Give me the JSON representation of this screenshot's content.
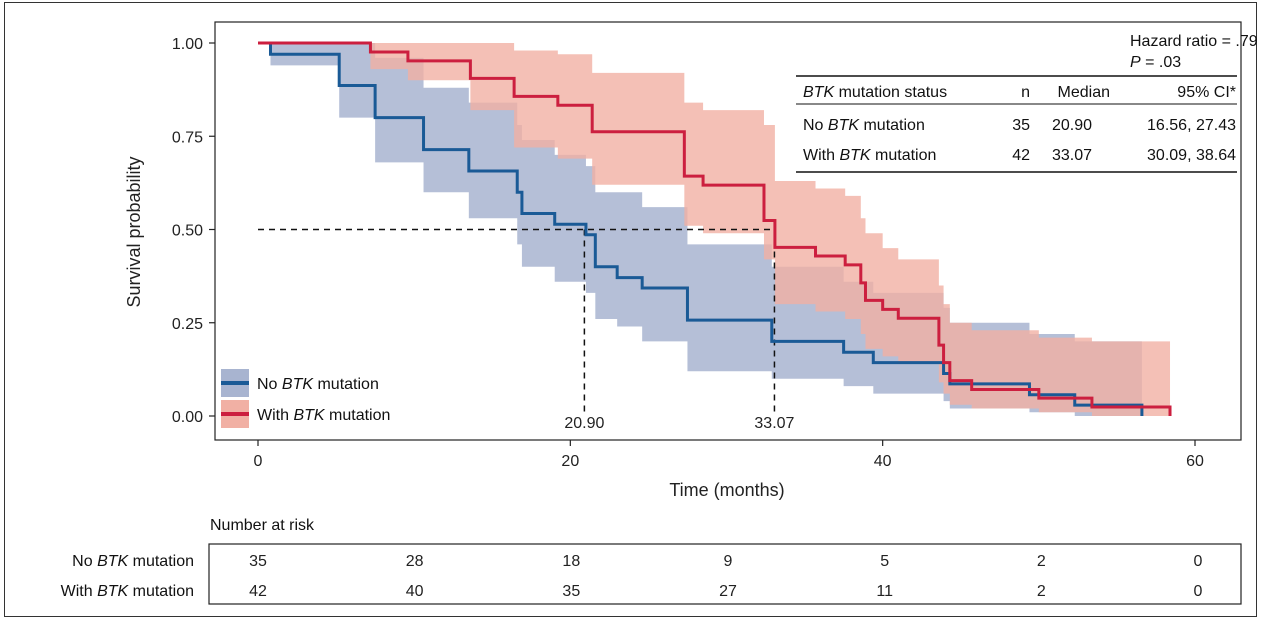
{
  "colors": {
    "no_mut": "#1a5a96",
    "with_mut": "#cc1f3f",
    "no_mut_band": "#a8b4d0",
    "with_mut_band": "#f1b0a4"
  },
  "chart_data": {
    "type": "line",
    "subtype": "kaplan-meier",
    "title": "",
    "xlabel": "Time (months)",
    "ylabel": "Survival probability",
    "xlim": [
      0,
      60
    ],
    "ylim": [
      0,
      1
    ],
    "xticks": [
      0,
      20,
      40,
      60
    ],
    "yticks": [
      0,
      0.25,
      0.5,
      0.75,
      1.0
    ],
    "ytick_labels": [
      "0.00",
      "0.25",
      "0.50",
      "0.75",
      "1.00"
    ],
    "grid": false,
    "legend_position": "bottom-left",
    "series": [
      {
        "key": "no_mut",
        "name_prefix": "No ",
        "name_gene": "BTK",
        "name_suffix": " mutation",
        "steps": [
          [
            0,
            1.0
          ],
          [
            0.8,
            0.97
          ],
          [
            5.2,
            0.886
          ],
          [
            7.5,
            0.8
          ],
          [
            10.6,
            0.714
          ],
          [
            13.5,
            0.657
          ],
          [
            16.6,
            0.6
          ],
          [
            16.9,
            0.543
          ],
          [
            19.0,
            0.514
          ],
          [
            21.0,
            0.486
          ],
          [
            21.6,
            0.4
          ],
          [
            23.0,
            0.371
          ],
          [
            24.6,
            0.343
          ],
          [
            27.5,
            0.257
          ],
          [
            32.9,
            0.2
          ],
          [
            37.5,
            0.171
          ],
          [
            39.4,
            0.143
          ],
          [
            43.9,
            0.114
          ],
          [
            44.3,
            0.086
          ],
          [
            49.4,
            0.057
          ],
          [
            52.3,
            0.029
          ],
          [
            56.6,
            0.0
          ]
        ],
        "upper": [
          [
            0,
            1.0
          ],
          [
            0.8,
            1.0
          ],
          [
            5.2,
            1.0
          ],
          [
            7.5,
            0.96
          ],
          [
            10.6,
            0.88
          ],
          [
            13.5,
            0.84
          ],
          [
            16.6,
            0.78
          ],
          [
            16.9,
            0.74
          ],
          [
            19.0,
            0.7
          ],
          [
            21.0,
            0.67
          ],
          [
            21.6,
            0.6
          ],
          [
            23.0,
            0.6
          ],
          [
            24.6,
            0.56
          ],
          [
            27.5,
            0.46
          ],
          [
            32.9,
            0.4
          ],
          [
            37.5,
            0.36
          ],
          [
            39.4,
            0.33
          ],
          [
            43.9,
            0.29
          ],
          [
            44.3,
            0.25
          ],
          [
            49.4,
            0.22
          ],
          [
            52.3,
            0.2
          ],
          [
            56.6,
            0.2
          ]
        ],
        "lower": [
          [
            0,
            1.0
          ],
          [
            0.8,
            0.94
          ],
          [
            5.2,
            0.8
          ],
          [
            7.5,
            0.68
          ],
          [
            10.6,
            0.6
          ],
          [
            13.5,
            0.53
          ],
          [
            16.6,
            0.46
          ],
          [
            16.9,
            0.4
          ],
          [
            19.0,
            0.36
          ],
          [
            21.0,
            0.33
          ],
          [
            21.6,
            0.26
          ],
          [
            23.0,
            0.24
          ],
          [
            24.6,
            0.2
          ],
          [
            27.5,
            0.12
          ],
          [
            32.9,
            0.1
          ],
          [
            37.5,
            0.08
          ],
          [
            39.4,
            0.06
          ],
          [
            43.9,
            0.04
          ],
          [
            44.3,
            0.02
          ],
          [
            49.4,
            0.01
          ],
          [
            52.3,
            0.0
          ],
          [
            56.6,
            0.0
          ]
        ]
      },
      {
        "key": "with_mut",
        "name_prefix": "With ",
        "name_gene": "BTK",
        "name_suffix": " mutation",
        "steps": [
          [
            0,
            1.0
          ],
          [
            7.2,
            0.976
          ],
          [
            9.6,
            0.952
          ],
          [
            13.6,
            0.905
          ],
          [
            16.4,
            0.857
          ],
          [
            19.2,
            0.833
          ],
          [
            21.4,
            0.762
          ],
          [
            27.3,
            0.643
          ],
          [
            28.5,
            0.619
          ],
          [
            32.4,
            0.524
          ],
          [
            33.1,
            0.452
          ],
          [
            35.7,
            0.429
          ],
          [
            37.6,
            0.405
          ],
          [
            38.6,
            0.357
          ],
          [
            38.9,
            0.31
          ],
          [
            40.0,
            0.286
          ],
          [
            41.0,
            0.262
          ],
          [
            43.6,
            0.19
          ],
          [
            43.9,
            0.143
          ],
          [
            44.3,
            0.095
          ],
          [
            45.7,
            0.071
          ],
          [
            50.0,
            0.048
          ],
          [
            53.4,
            0.024
          ],
          [
            58.4,
            0.012
          ]
        ],
        "upper": [
          [
            0,
            1.0
          ],
          [
            7.2,
            1.0
          ],
          [
            9.6,
            1.0
          ],
          [
            13.6,
            1.0
          ],
          [
            16.4,
            0.98
          ],
          [
            19.2,
            0.97
          ],
          [
            21.4,
            0.92
          ],
          [
            27.3,
            0.84
          ],
          [
            28.5,
            0.82
          ],
          [
            32.4,
            0.78
          ],
          [
            33.1,
            0.63
          ],
          [
            35.7,
            0.61
          ],
          [
            37.6,
            0.59
          ],
          [
            38.6,
            0.53
          ],
          [
            38.9,
            0.49
          ],
          [
            40.0,
            0.45
          ],
          [
            41.0,
            0.42
          ],
          [
            43.6,
            0.35
          ],
          [
            43.9,
            0.3
          ],
          [
            44.3,
            0.25
          ],
          [
            45.7,
            0.23
          ],
          [
            50.0,
            0.21
          ],
          [
            53.4,
            0.2
          ],
          [
            58.4,
            0.2
          ]
        ],
        "lower": [
          [
            0,
            1.0
          ],
          [
            7.2,
            0.93
          ],
          [
            9.6,
            0.9
          ],
          [
            13.6,
            0.82
          ],
          [
            16.4,
            0.72
          ],
          [
            19.2,
            0.69
          ],
          [
            21.4,
            0.62
          ],
          [
            27.3,
            0.51
          ],
          [
            28.5,
            0.49
          ],
          [
            32.4,
            0.42
          ],
          [
            33.1,
            0.3
          ],
          [
            35.7,
            0.28
          ],
          [
            37.6,
            0.26
          ],
          [
            38.6,
            0.22
          ],
          [
            38.9,
            0.18
          ],
          [
            40.0,
            0.16
          ],
          [
            41.0,
            0.14
          ],
          [
            43.6,
            0.09
          ],
          [
            43.9,
            0.06
          ],
          [
            44.3,
            0.03
          ],
          [
            45.7,
            0.02
          ],
          [
            50.0,
            0.01
          ],
          [
            53.4,
            0.0
          ],
          [
            58.4,
            0.0
          ]
        ]
      }
    ],
    "median_lines": {
      "y": 0.5,
      "x_no_mut": 20.9,
      "x_with_mut": 33.07,
      "label_no_mut": "20.90",
      "label_with_mut": "33.07"
    },
    "stats": {
      "hr_line": "Hazard ratio = .79",
      "p_label": "P",
      "p_value": " = .03",
      "table_header": {
        "status_gene": "BTK",
        "status_rest": " mutation status",
        "n": "n",
        "median": "Median",
        "ci": "95% CI*"
      },
      "rows": [
        {
          "prefix": "No ",
          "gene": "BTK",
          "suffix": " mutation",
          "n": "35",
          "median": "20.90",
          "ci": "16.56, 27.43"
        },
        {
          "prefix": "With ",
          "gene": "BTK",
          "suffix": " mutation",
          "n": "42",
          "median": "33.07",
          "ci": "30.09, 38.64"
        }
      ]
    },
    "risk_table": {
      "title": "Number at risk",
      "times": [
        0,
        10,
        20,
        30,
        40,
        50,
        60
      ],
      "rows": [
        {
          "key": "no_mut",
          "prefix": "No ",
          "gene": "BTK",
          "suffix": " mutation",
          "values": [
            "35",
            "28",
            "18",
            "9",
            "5",
            "2",
            "0"
          ]
        },
        {
          "key": "with_mut",
          "prefix": "With ",
          "gene": "BTK",
          "suffix": " mutation",
          "values": [
            "42",
            "40",
            "35",
            "27",
            "11",
            "2",
            "0"
          ]
        }
      ]
    }
  }
}
